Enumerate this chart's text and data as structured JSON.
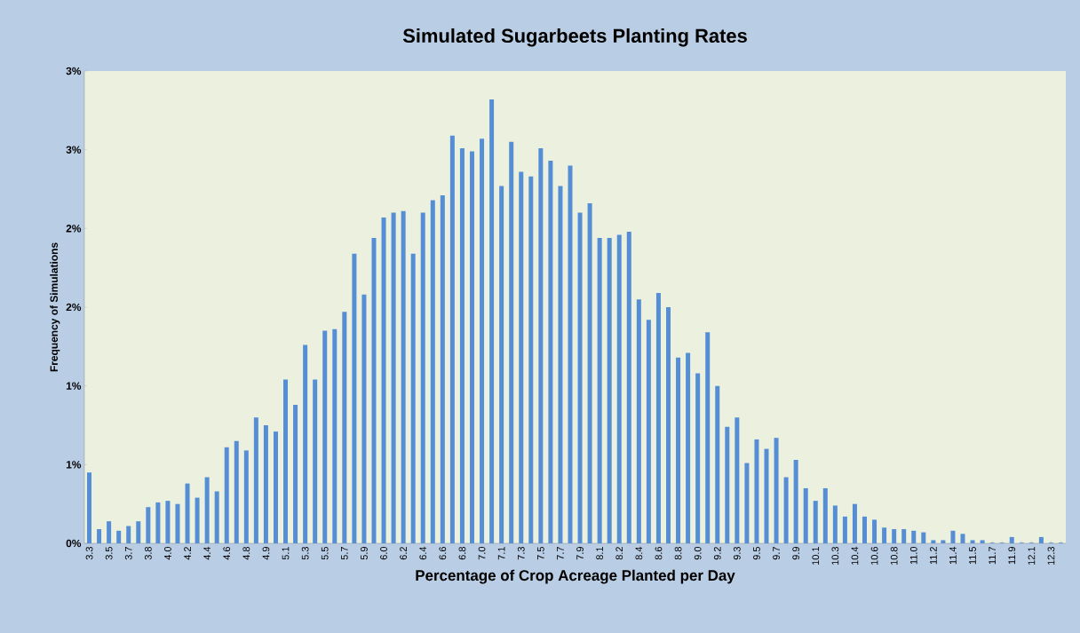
{
  "chart_data": {
    "type": "bar",
    "title": "Simulated Sugarbeets Planting Rates",
    "xlabel": "Percentage of Crop Acreage Planted per Day",
    "ylabel": "Frequency of Simulations",
    "categories": [
      "3.3",
      null,
      "3.5",
      null,
      "3.7",
      null,
      "3.8",
      null,
      "4.0",
      null,
      "4.2",
      null,
      "4.4",
      null,
      "4.6",
      null,
      "4.8",
      null,
      "4.9",
      null,
      "5.1",
      null,
      "5.3",
      null,
      "5.5",
      null,
      "5.7",
      null,
      "5.9",
      null,
      "6.0",
      null,
      "6.2",
      null,
      "6.4",
      null,
      "6.6",
      null,
      "6.8",
      null,
      "7.0",
      null,
      "7.1",
      null,
      "7.3",
      null,
      "7.5",
      null,
      "7.7",
      null,
      "7.9",
      null,
      "8.1",
      null,
      "8.2",
      null,
      "8.4",
      null,
      "8.6",
      null,
      "8.8",
      null,
      "9.0",
      null,
      "9.2",
      null,
      "9.3",
      null,
      "9.5",
      null,
      "9.7",
      null,
      "9.9",
      null,
      "10.1",
      null,
      "10.3",
      null,
      "10.4",
      null,
      "10.6",
      null,
      "10.8",
      null,
      "11.0",
      null,
      "11.2",
      null,
      "11.4",
      null,
      "11.5",
      null,
      "11.7",
      null,
      "11.9",
      null,
      "12.1",
      null,
      "12.3",
      null
    ],
    "values": [
      0.45,
      0.09,
      0.14,
      0.08,
      0.11,
      0.14,
      0.23,
      0.26,
      0.27,
      0.25,
      0.38,
      0.29,
      0.42,
      0.33,
      0.61,
      0.65,
      0.59,
      0.8,
      0.75,
      0.71,
      1.04,
      0.88,
      1.26,
      1.04,
      1.35,
      1.36,
      1.47,
      1.84,
      1.58,
      1.94,
      2.07,
      2.1,
      2.11,
      1.84,
      2.1,
      2.18,
      2.21,
      2.59,
      2.51,
      2.49,
      2.57,
      2.82,
      2.27,
      2.55,
      2.36,
      2.33,
      2.51,
      2.43,
      2.27,
      2.4,
      2.1,
      2.16,
      1.94,
      1.94,
      1.96,
      1.98,
      1.55,
      1.42,
      1.59,
      1.5,
      1.18,
      1.21,
      1.08,
      1.34,
      1.0,
      0.74,
      0.8,
      0.51,
      0.66,
      0.6,
      0.67,
      0.42,
      0.53,
      0.35,
      0.27,
      0.35,
      0.24,
      0.17,
      0.25,
      0.17,
      0.15,
      0.1,
      0.09,
      0.09,
      0.08,
      0.07,
      0.02,
      0.02,
      0.08,
      0.06,
      0.02,
      0.02,
      0.004,
      0.004,
      0.04,
      0.004,
      0.004,
      0.04,
      0.004,
      0.004
    ],
    "color": "#558ed5",
    "ylim": [
      0,
      3
    ],
    "yticks": [
      {
        "value": 0,
        "label": "0%"
      },
      {
        "value": 0.5,
        "label": "1%"
      },
      {
        "value": 1,
        "label": "1%"
      },
      {
        "value": 1.5,
        "label": "2%"
      },
      {
        "value": 2,
        "label": "2%"
      },
      {
        "value": 2.5,
        "label": "3%"
      },
      {
        "value": 3,
        "label": "3%"
      }
    ]
  }
}
